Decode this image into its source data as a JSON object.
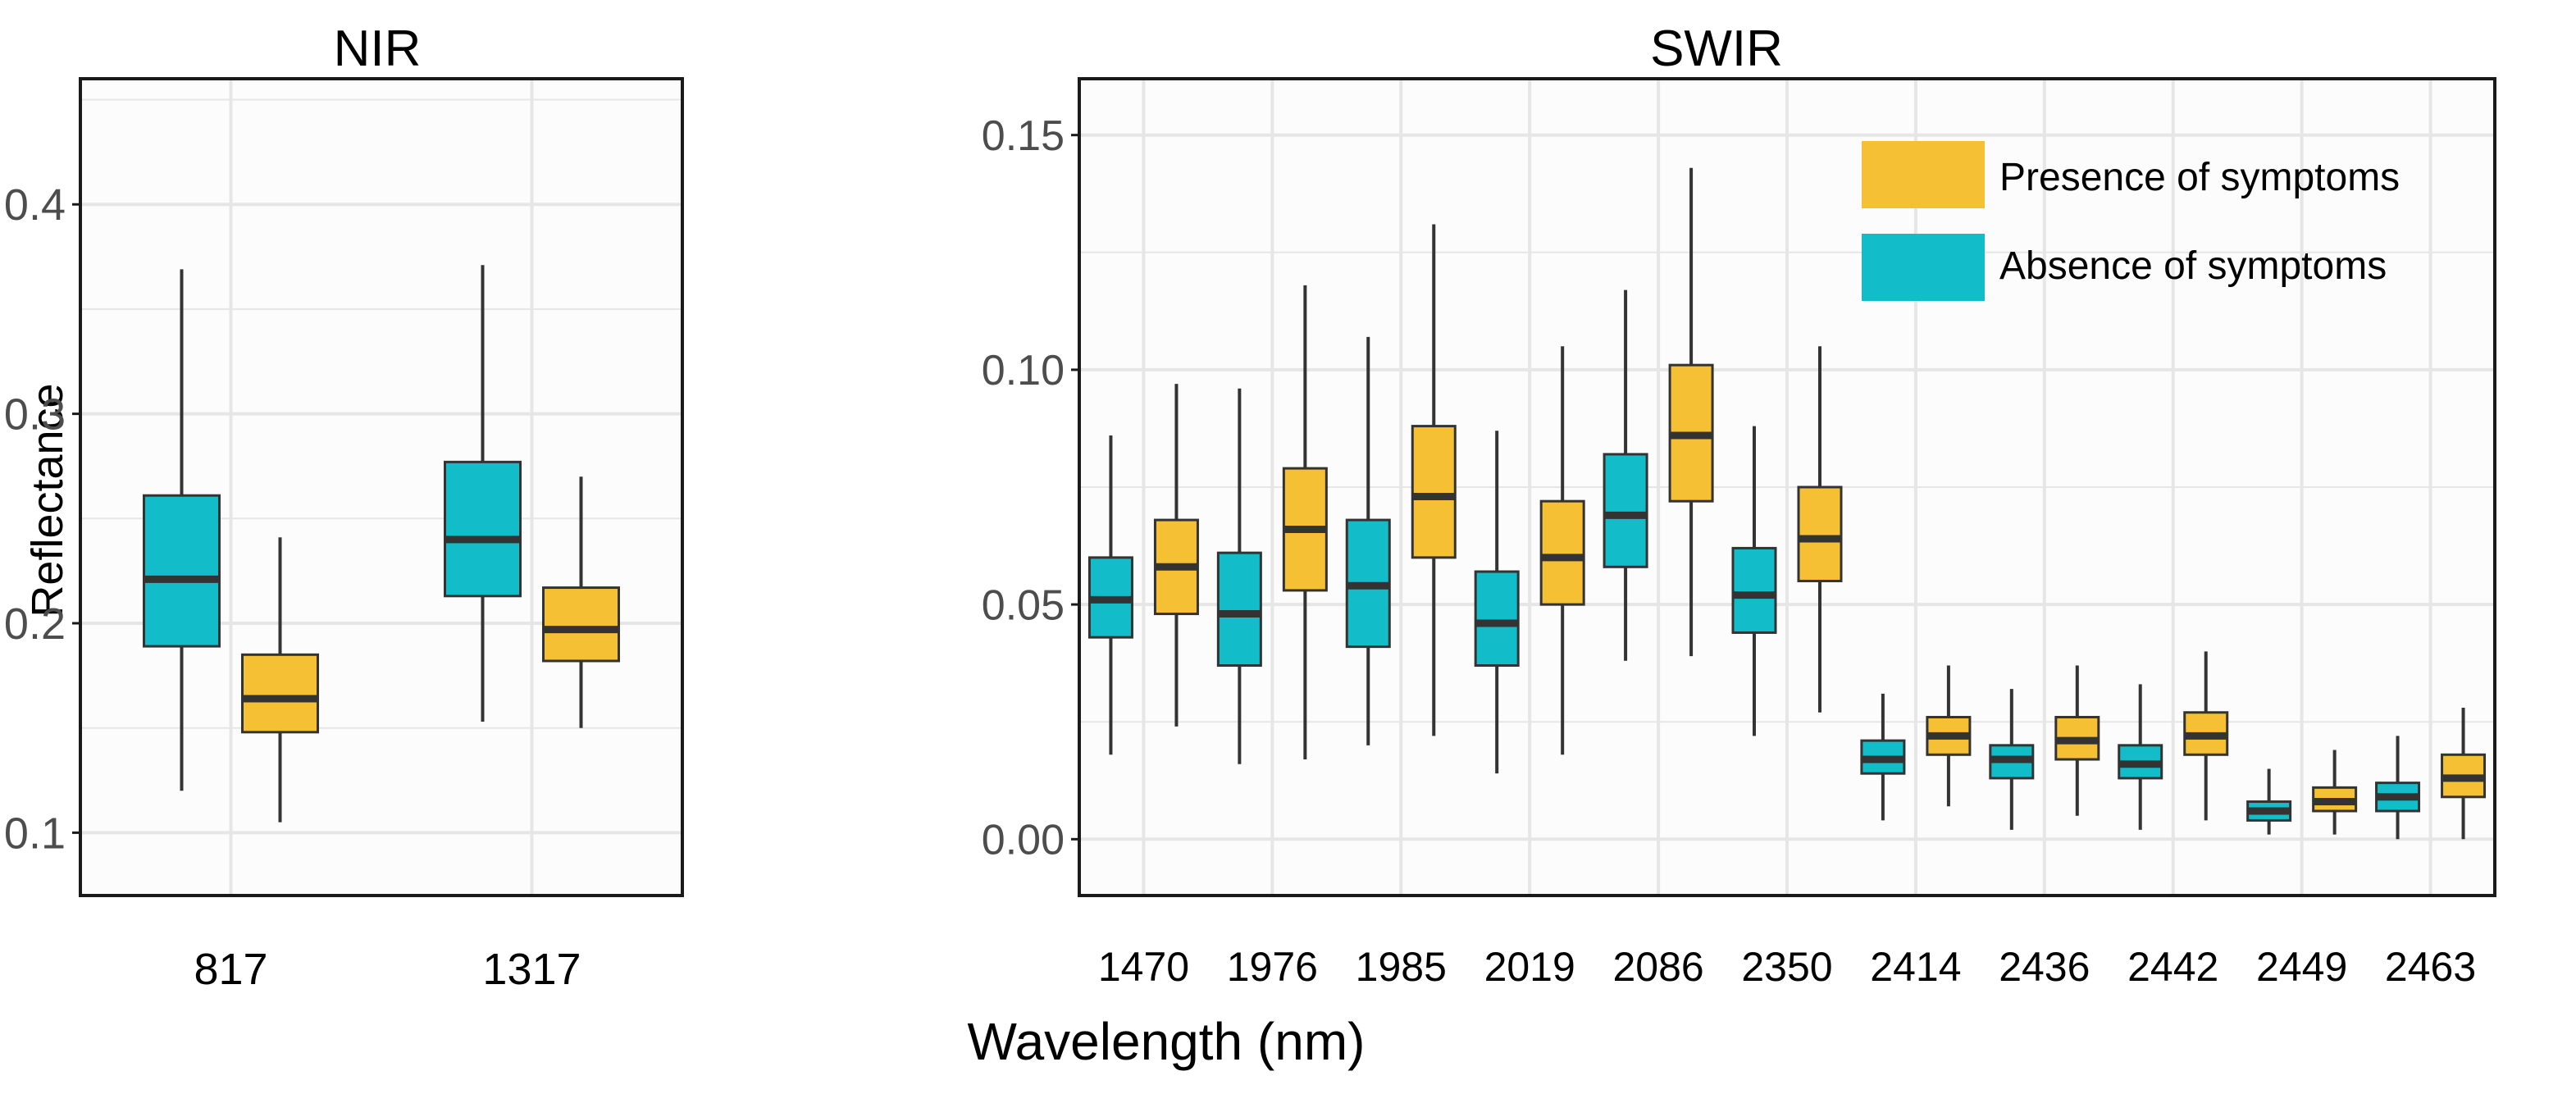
{
  "colors": {
    "presence": "#F5C034",
    "absence": "#12BCC9",
    "panel_bg": "#FCFCFC",
    "grid": "#E6E6E6",
    "frame": "#1a1a1a",
    "whisker": "#333333",
    "median": "#333333",
    "tick_text": "#4D4D4D",
    "title_text": "#000000"
  },
  "chart_data": [
    {
      "type": "boxplot",
      "title": "NIR",
      "xlabel": "",
      "ylabel": "Reflectance",
      "ylim": [
        0.07,
        0.46
      ],
      "yticks": [
        0.1,
        0.2,
        0.3,
        0.4
      ],
      "ytick_labels": [
        "0.1",
        "0.2",
        "0.3",
        "0.4"
      ],
      "grid": true,
      "categories": [
        "817",
        "1317"
      ],
      "series": [
        {
          "name": "Absence of symptoms",
          "color_key": "absence",
          "boxes": [
            {
              "min": 0.12,
              "q1": 0.189,
              "median": 0.221,
              "q3": 0.261,
              "max": 0.369
            },
            {
              "min": 0.153,
              "q1": 0.213,
              "median": 0.24,
              "q3": 0.277,
              "max": 0.371
            }
          ]
        },
        {
          "name": "Presence of symptoms",
          "color_key": "presence",
          "boxes": [
            {
              "min": 0.105,
              "q1": 0.148,
              "median": 0.164,
              "q3": 0.185,
              "max": 0.241
            },
            {
              "min": 0.15,
              "q1": 0.182,
              "median": 0.197,
              "q3": 0.217,
              "max": 0.27
            }
          ]
        }
      ]
    },
    {
      "type": "boxplot",
      "title": "SWIR",
      "xlabel": "Wavelength (nm)",
      "ylabel": "",
      "ylim": [
        -0.012,
        0.162
      ],
      "yticks": [
        0.0,
        0.05,
        0.1,
        0.15
      ],
      "ytick_labels": [
        "0.00",
        "0.05",
        "0.10",
        "0.15"
      ],
      "grid": true,
      "legend_position": "top-right",
      "categories": [
        "1470",
        "1976",
        "1985",
        "2019",
        "2086",
        "2350",
        "2414",
        "2436",
        "2442",
        "2449",
        "2463"
      ],
      "series": [
        {
          "name": "Absence of symptoms",
          "color_key": "absence",
          "boxes": [
            {
              "min": 0.018,
              "q1": 0.043,
              "median": 0.051,
              "q3": 0.06,
              "max": 0.086
            },
            {
              "min": 0.016,
              "q1": 0.037,
              "median": 0.048,
              "q3": 0.061,
              "max": 0.096
            },
            {
              "min": 0.02,
              "q1": 0.041,
              "median": 0.054,
              "q3": 0.068,
              "max": 0.107
            },
            {
              "min": 0.014,
              "q1": 0.037,
              "median": 0.046,
              "q3": 0.057,
              "max": 0.087
            },
            {
              "min": 0.038,
              "q1": 0.058,
              "median": 0.069,
              "q3": 0.082,
              "max": 0.117
            },
            {
              "min": 0.022,
              "q1": 0.044,
              "median": 0.052,
              "q3": 0.062,
              "max": 0.088
            },
            {
              "min": 0.004,
              "q1": 0.014,
              "median": 0.017,
              "q3": 0.021,
              "max": 0.031
            },
            {
              "min": 0.002,
              "q1": 0.013,
              "median": 0.017,
              "q3": 0.02,
              "max": 0.032
            },
            {
              "min": 0.002,
              "q1": 0.013,
              "median": 0.016,
              "q3": 0.02,
              "max": 0.033
            },
            {
              "min": 0.001,
              "q1": 0.004,
              "median": 0.006,
              "q3": 0.008,
              "max": 0.015
            },
            {
              "min": 0.0,
              "q1": 0.006,
              "median": 0.009,
              "q3": 0.012,
              "max": 0.022
            }
          ]
        },
        {
          "name": "Presence of symptoms",
          "color_key": "presence",
          "boxes": [
            {
              "min": 0.024,
              "q1": 0.048,
              "median": 0.058,
              "q3": 0.068,
              "max": 0.097
            },
            {
              "min": 0.017,
              "q1": 0.053,
              "median": 0.066,
              "q3": 0.079,
              "max": 0.118
            },
            {
              "min": 0.022,
              "q1": 0.06,
              "median": 0.073,
              "q3": 0.088,
              "max": 0.131
            },
            {
              "min": 0.018,
              "q1": 0.05,
              "median": 0.06,
              "q3": 0.072,
              "max": 0.105
            },
            {
              "min": 0.039,
              "q1": 0.072,
              "median": 0.086,
              "q3": 0.101,
              "max": 0.143
            },
            {
              "min": 0.027,
              "q1": 0.055,
              "median": 0.064,
              "q3": 0.075,
              "max": 0.105
            },
            {
              "min": 0.007,
              "q1": 0.018,
              "median": 0.022,
              "q3": 0.026,
              "max": 0.037
            },
            {
              "min": 0.005,
              "q1": 0.017,
              "median": 0.021,
              "q3": 0.026,
              "max": 0.037
            },
            {
              "min": 0.004,
              "q1": 0.018,
              "median": 0.022,
              "q3": 0.027,
              "max": 0.04
            },
            {
              "min": 0.001,
              "q1": 0.006,
              "median": 0.008,
              "q3": 0.011,
              "max": 0.019
            },
            {
              "min": 0.0,
              "q1": 0.009,
              "median": 0.013,
              "q3": 0.018,
              "max": 0.028
            }
          ]
        }
      ]
    }
  ],
  "legend": {
    "items": [
      {
        "label": "Presence of symptoms",
        "color_key": "presence"
      },
      {
        "label": "Absence of symptoms",
        "color_key": "absence"
      }
    ]
  }
}
